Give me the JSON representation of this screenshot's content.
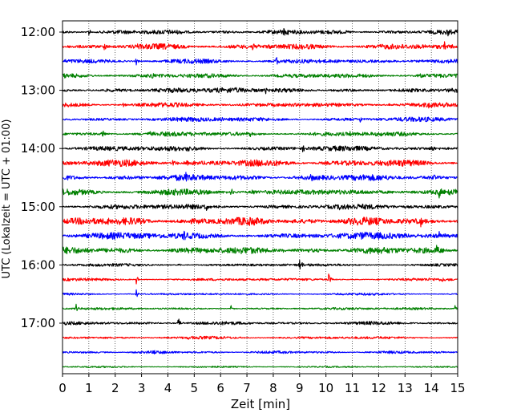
{
  "chart_data": {
    "type": "line",
    "title": "",
    "xlabel": "Zeit  [min]",
    "ylabel": "UTC (Lokalzeit = UTC + 01:00)",
    "xlim": [
      0,
      15
    ],
    "x_ticks": [
      0,
      1,
      2,
      3,
      4,
      5,
      6,
      7,
      8,
      9,
      10,
      11,
      12,
      13,
      14,
      15
    ],
    "y_ticks": [
      "12:00",
      "13:00",
      "14:00",
      "15:00",
      "16:00",
      "17:00"
    ],
    "grid": "vertical dotted at each minute",
    "trace_colors": [
      "#000000",
      "#ff0000",
      "#0000ff",
      "#008000"
    ],
    "series": [
      {
        "start": "12:00",
        "color": "#000000",
        "noise": 0.8,
        "events": [
          {
            "t": 1.0,
            "a": 0.7
          },
          {
            "t": 8.4,
            "a": 1.0
          },
          {
            "t": 14.6,
            "a": 0.4
          }
        ]
      },
      {
        "start": "12:15",
        "color": "#ff0000",
        "noise": 1.0,
        "events": [
          {
            "t": 1.6,
            "a": 0.7
          },
          {
            "t": 2.8,
            "a": 0.5
          },
          {
            "t": 7.2,
            "a": 0.5
          },
          {
            "t": 14.5,
            "a": 0.7
          }
        ]
      },
      {
        "start": "12:30",
        "color": "#0000ff",
        "noise": 0.8,
        "events": [
          {
            "t": 2.8,
            "a": 0.5
          },
          {
            "t": 8.1,
            "a": 0.9
          }
        ]
      },
      {
        "start": "12:45",
        "color": "#008000",
        "noise": 0.8,
        "events": [
          {
            "t": 3.4,
            "a": 0.7
          },
          {
            "t": 13.6,
            "a": 0.8
          }
        ]
      },
      {
        "start": "13:00",
        "color": "#000000",
        "noise": 0.9,
        "events": [
          {
            "t": 5.1,
            "a": 0.6
          },
          {
            "t": 7.7,
            "a": 0.6
          }
        ]
      },
      {
        "start": "13:15",
        "color": "#ff0000",
        "noise": 0.8,
        "events": [
          {
            "t": 2.3,
            "a": 1.0
          },
          {
            "t": 12.4,
            "a": 0.5
          },
          {
            "t": 13.9,
            "a": 0.6
          }
        ]
      },
      {
        "start": "13:30",
        "color": "#0000ff",
        "noise": 0.8,
        "events": [
          {
            "t": 6.0,
            "a": 0.6
          },
          {
            "t": 11.3,
            "a": 0.5
          }
        ]
      },
      {
        "start": "13:45",
        "color": "#008000",
        "noise": 0.8,
        "events": [
          {
            "t": 1.5,
            "a": 1.0
          },
          {
            "t": 3.3,
            "a": 0.4
          },
          {
            "t": 7.1,
            "a": 0.4
          },
          {
            "t": 10.9,
            "a": 0.4
          }
        ]
      },
      {
        "start": "14:00",
        "color": "#000000",
        "noise": 0.9,
        "events": [
          {
            "t": 4.7,
            "a": 0.9
          },
          {
            "t": 9.1,
            "a": 0.6
          },
          {
            "t": 14.0,
            "a": 0.5
          }
        ]
      },
      {
        "start": "14:15",
        "color": "#ff0000",
        "noise": 1.2,
        "events": [
          {
            "t": 4.2,
            "a": 0.6
          },
          {
            "t": 4.7,
            "a": 0.7
          }
        ]
      },
      {
        "start": "14:30",
        "color": "#0000ff",
        "noise": 1.1,
        "events": [
          {
            "t": 4.7,
            "a": 0.8
          },
          {
            "t": 9.4,
            "a": 0.6
          },
          {
            "t": 14.1,
            "a": 0.5
          }
        ]
      },
      {
        "start": "14:45",
        "color": "#008000",
        "noise": 1.1,
        "events": [
          {
            "t": 6.4,
            "a": 0.8
          },
          {
            "t": 7.2,
            "a": 0.6
          },
          {
            "t": 14.3,
            "a": 0.8
          }
        ]
      },
      {
        "start": "15:00",
        "color": "#000000",
        "noise": 0.9,
        "events": [
          {
            "t": 5.4,
            "a": 0.9
          },
          {
            "t": 10.5,
            "a": 0.5
          }
        ]
      },
      {
        "start": "15:15",
        "color": "#ff0000",
        "noise": 1.4,
        "events": [
          {
            "t": 1.7,
            "a": 0.6
          },
          {
            "t": 7.0,
            "a": 0.5
          },
          {
            "t": 13.6,
            "a": 0.8
          }
        ]
      },
      {
        "start": "15:30",
        "color": "#0000ff",
        "noise": 1.2,
        "events": [
          {
            "t": 4.6,
            "a": 0.7
          },
          {
            "t": 11.5,
            "a": 0.8
          },
          {
            "t": 14.3,
            "a": 0.5
          }
        ]
      },
      {
        "start": "15:45",
        "color": "#008000",
        "noise": 1.2,
        "events": [
          {
            "t": 8.4,
            "a": 0.5
          },
          {
            "t": 14.2,
            "a": 0.9
          }
        ]
      },
      {
        "start": "16:00",
        "color": "#000000",
        "noise": 0.5,
        "events": [
          {
            "t": 4.4,
            "a": 0.3
          },
          {
            "t": 9.0,
            "a": 1.2
          }
        ]
      },
      {
        "start": "16:15",
        "color": "#ff0000",
        "noise": 0.5,
        "events": [
          {
            "t": 2.8,
            "a": 0.7
          },
          {
            "t": 10.1,
            "a": 1.2
          },
          {
            "t": 14.4,
            "a": 0.5
          }
        ]
      },
      {
        "start": "16:30",
        "color": "#0000ff",
        "noise": 0.4,
        "events": [
          {
            "t": 2.8,
            "a": 0.7
          }
        ]
      },
      {
        "start": "16:45",
        "color": "#008000",
        "noise": 0.4,
        "events": [
          {
            "t": 0.5,
            "a": 0.8
          },
          {
            "t": 6.4,
            "a": 0.6
          },
          {
            "t": 14.9,
            "a": 0.5
          }
        ]
      },
      {
        "start": "17:00",
        "color": "#000000",
        "noise": 0.6,
        "events": [
          {
            "t": 1.2,
            "a": 0.4
          },
          {
            "t": 4.4,
            "a": 1.0
          }
        ]
      },
      {
        "start": "17:15",
        "color": "#ff0000",
        "noise": 0.5,
        "events": [
          {
            "t": 4.8,
            "a": 0.3
          }
        ]
      },
      {
        "start": "17:30",
        "color": "#0000ff",
        "noise": 0.5,
        "events": [
          {
            "t": 3.5,
            "a": 0.5
          }
        ]
      },
      {
        "start": "17:45",
        "color": "#008000",
        "noise": 0.3,
        "events": []
      }
    ]
  }
}
